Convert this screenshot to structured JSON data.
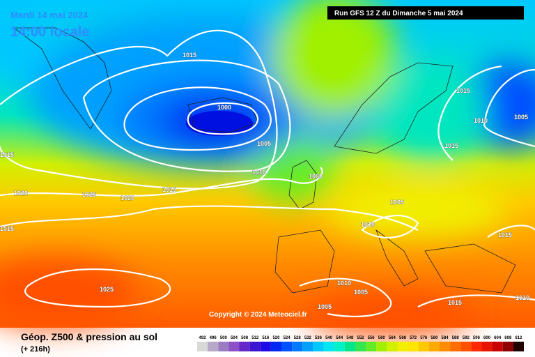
{
  "header": {
    "date": "Mardi 14 mai 2024",
    "time": "14:00 locale",
    "run": "Run GFS 12 Z du Dimanche 5 mai 2024"
  },
  "copyright": "Copyright © 2024 Meteociel.fr",
  "footer": {
    "title": "Géop. Z500 & pression au sol",
    "lead": "(+ 216h)"
  },
  "isobar_labels": [
    "1015",
    "1000",
    "1005",
    "1010",
    "1000",
    "1015",
    "1020",
    "1025",
    "1020",
    "1015",
    "1015",
    "1025",
    "1015",
    "1010",
    "1005",
    "1015",
    "1005",
    "1010",
    "1015",
    "1010",
    "1005",
    "1015",
    "1010",
    "1005"
  ],
  "scale": {
    "labels": [
      "492",
      "496",
      "500",
      "504",
      "508",
      "512",
      "516",
      "520",
      "524",
      "528",
      "532",
      "536",
      "540",
      "544",
      "548",
      "552",
      "556",
      "560",
      "564",
      "568",
      "572",
      "576",
      "580",
      "584",
      "588",
      "592",
      "596",
      "600",
      "604",
      "608",
      "612"
    ],
    "colors": [
      "#d8d8d8",
      "#b8a8c8",
      "#9c7cc0",
      "#8c50c8",
      "#6428c8",
      "#3c14d2",
      "#1e0ae6",
      "#0028f0",
      "#0050ff",
      "#0078ff",
      "#00a0ff",
      "#00c8ff",
      "#00e6f0",
      "#00f0c8",
      "#00e68c",
      "#32e650",
      "#64eb28",
      "#a0f000",
      "#d2f000",
      "#f0f000",
      "#ffe600",
      "#ffc800",
      "#ffaa00",
      "#ff8c00",
      "#ff6e00",
      "#ff5000",
      "#ff2800",
      "#e61400",
      "#c80000",
      "#8c0000",
      "#200000"
    ]
  }
}
